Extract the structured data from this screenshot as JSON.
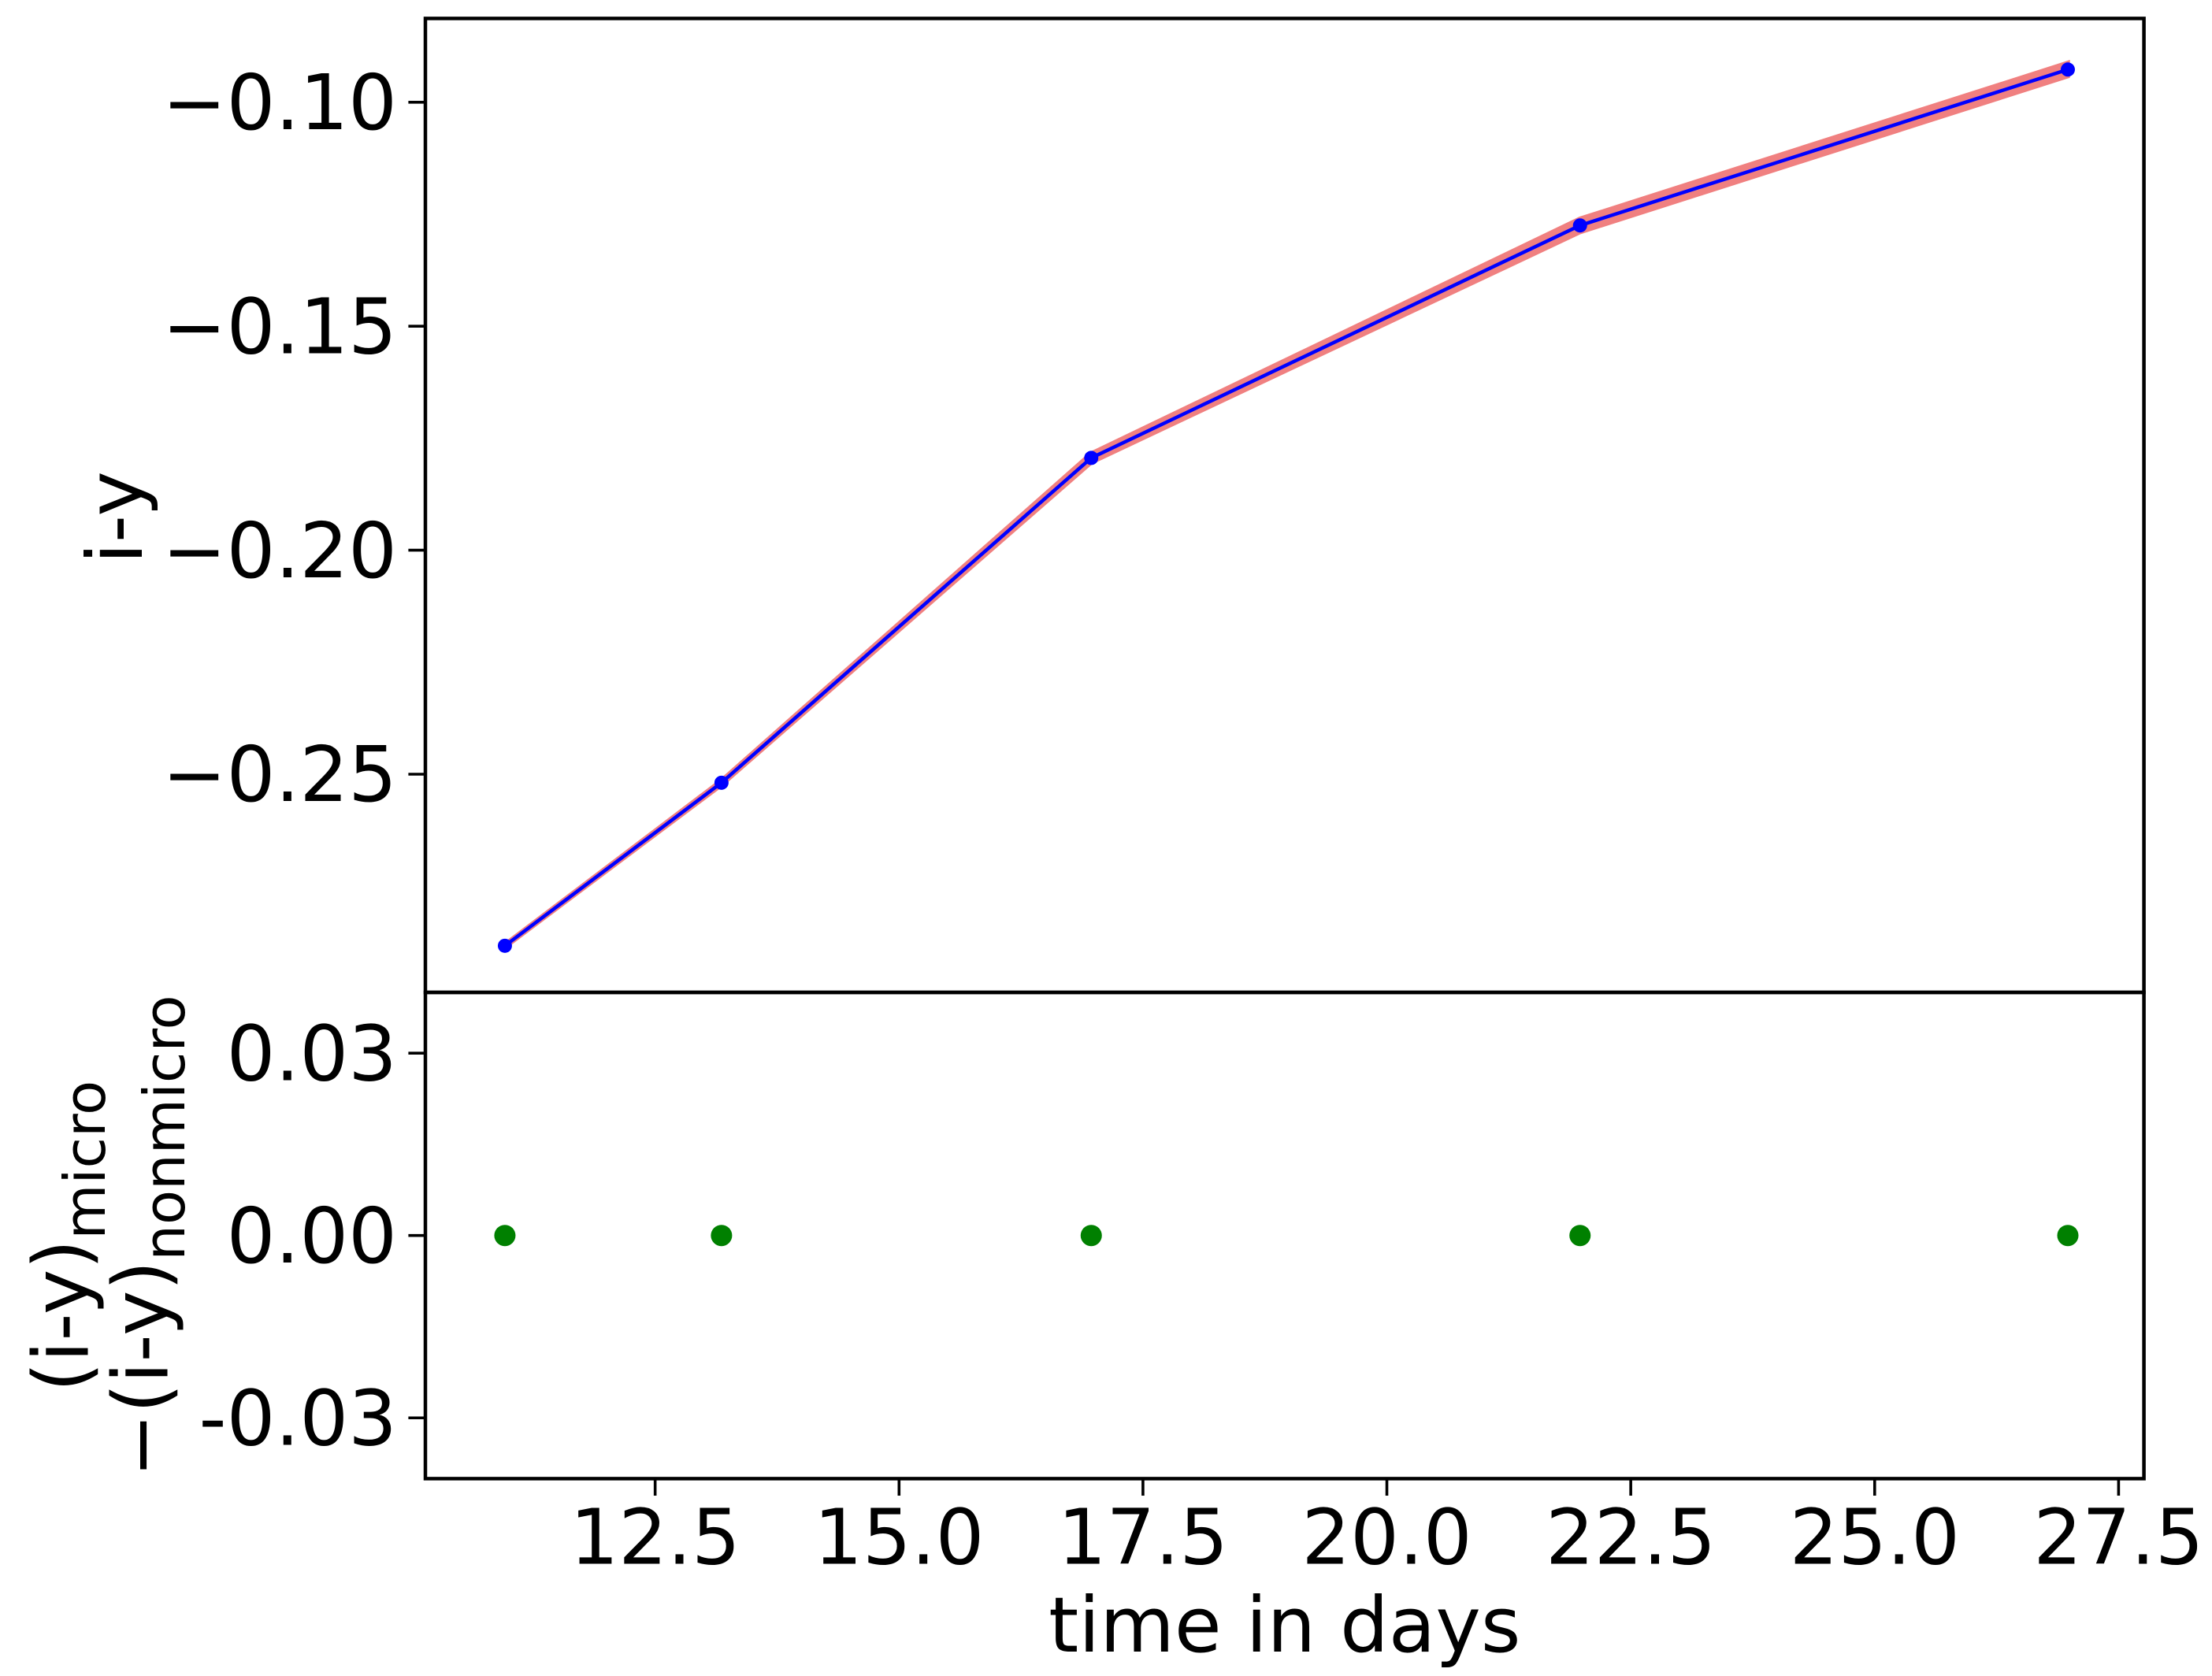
{
  "chart_data": [
    {
      "type": "line",
      "y_label": "i-y",
      "x": [
        10.96,
        13.18,
        16.97,
        21.98,
        26.98
      ],
      "series": [
        {
          "color": "#0000ff",
          "band_color": "#f08080",
          "values": [
            -0.2883,
            -0.2519,
            -0.1794,
            -0.1275,
            -0.0927
          ],
          "errors": [
            0.0003,
            0.0005,
            0.001,
            0.0015,
            0.0015
          ]
        }
      ],
      "xlim": [
        10.145,
        27.76
      ],
      "ylim": [
        -0.2987,
        -0.0813
      ],
      "yticks": [
        {
          "value": -0.1,
          "label": "−0.10"
        },
        {
          "value": -0.15,
          "label": "−0.15"
        },
        {
          "value": -0.2,
          "label": "−0.20"
        },
        {
          "value": -0.25,
          "label": "−0.25"
        }
      ]
    },
    {
      "type": "scatter",
      "x_label": "time in days",
      "y_label": [
        {
          "text": "(i-y)",
          "sub": "micro"
        },
        {
          "text": "−(i-y)",
          "sub": "nonmicro"
        }
      ],
      "x": [
        10.96,
        13.18,
        16.97,
        21.98,
        26.98
      ],
      "series": [
        {
          "color": "#008000",
          "values": [
            0,
            0,
            0,
            0,
            0
          ]
        }
      ],
      "xlim": [
        10.145,
        27.76
      ],
      "ylim": [
        -0.04,
        0.04
      ],
      "xticks": [
        12.5,
        {
          "value": 15,
          "label": "15.0"
        },
        17.5,
        {
          "value": 20,
          "label": "20.0"
        },
        22.5,
        {
          "value": 25,
          "label": "25.0"
        },
        27.5
      ],
      "yticks": [
        0.03,
        {
          "value": 0,
          "label": "0.00"
        },
        -0.03
      ]
    }
  ]
}
